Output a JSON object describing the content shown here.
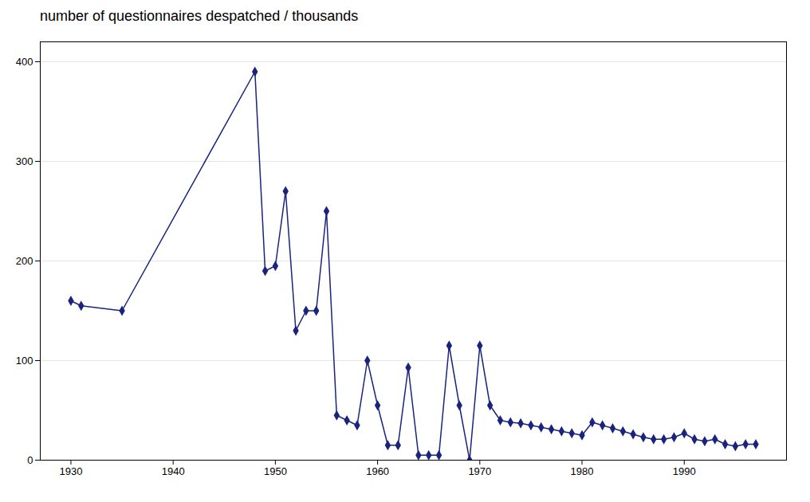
{
  "chart_data": {
    "type": "line",
    "title": "number of questionnaires despatched / thousands",
    "x": [
      1930,
      1931,
      1935,
      1948,
      1949,
      1950,
      1951,
      1952,
      1953,
      1954,
      1955,
      1956,
      1957,
      1958,
      1959,
      1960,
      1961,
      1962,
      1963,
      1964,
      1965,
      1966,
      1967,
      1968,
      1969,
      1970,
      1971,
      1972,
      1973,
      1974,
      1975,
      1976,
      1977,
      1978,
      1979,
      1980,
      1981,
      1982,
      1983,
      1984,
      1985,
      1986,
      1987,
      1988,
      1989,
      1990,
      1991,
      1992,
      1993,
      1994,
      1995,
      1996,
      1997
    ],
    "values": [
      160,
      155,
      150,
      390,
      190,
      195,
      270,
      130,
      150,
      150,
      250,
      45,
      40,
      35,
      100,
      55,
      15,
      15,
      93,
      5,
      5,
      5,
      115,
      55,
      0,
      115,
      55,
      40,
      38,
      37,
      35,
      33,
      31,
      29,
      27,
      25,
      38,
      35,
      32,
      29,
      26,
      23,
      21,
      21,
      23,
      27,
      21,
      19,
      21,
      16,
      14,
      16,
      16
    ],
    "color": "#1a237e",
    "marker": "diamond",
    "xlim": [
      1927,
      2000
    ],
    "ylim": [
      0,
      420
    ],
    "xticks": [
      1930,
      1940,
      1950,
      1960,
      1970,
      1980,
      1990
    ],
    "yticks": [
      0,
      100,
      200,
      300,
      400
    ],
    "grid": true
  }
}
